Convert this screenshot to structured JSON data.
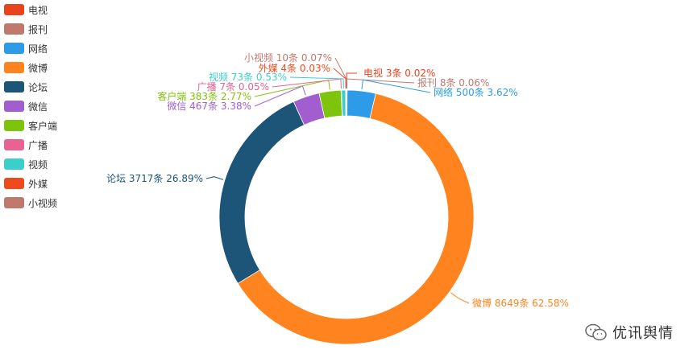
{
  "chart_data": {
    "type": "pie",
    "donut": true,
    "unit": "条",
    "categories": [
      "电视",
      "报刊",
      "网络",
      "微博",
      "论坛",
      "微信",
      "客户端",
      "广播",
      "视频",
      "外媒",
      "小视频"
    ],
    "values": [
      3,
      8,
      500,
      8649,
      3717,
      467,
      383,
      7,
      73,
      4,
      10
    ],
    "percents": [
      "0.02%",
      "0.06%",
      "3.62%",
      "62.58%",
      "26.89%",
      "3.38%",
      "2.77%",
      "0.05%",
      "0.53%",
      "0.03%",
      "0.07%"
    ],
    "colors": [
      "#e8431c",
      "#c0796d",
      "#2d9be8",
      "#ff8420",
      "#1c5577",
      "#a25dcf",
      "#7ec30c",
      "#e86392",
      "#3ccecb",
      "#ef4a1c",
      "#c0796d"
    ],
    "legend_position": "top-left",
    "title": ""
  },
  "watermark": {
    "text": "优讯舆情",
    "icon": "wechat-icon"
  }
}
